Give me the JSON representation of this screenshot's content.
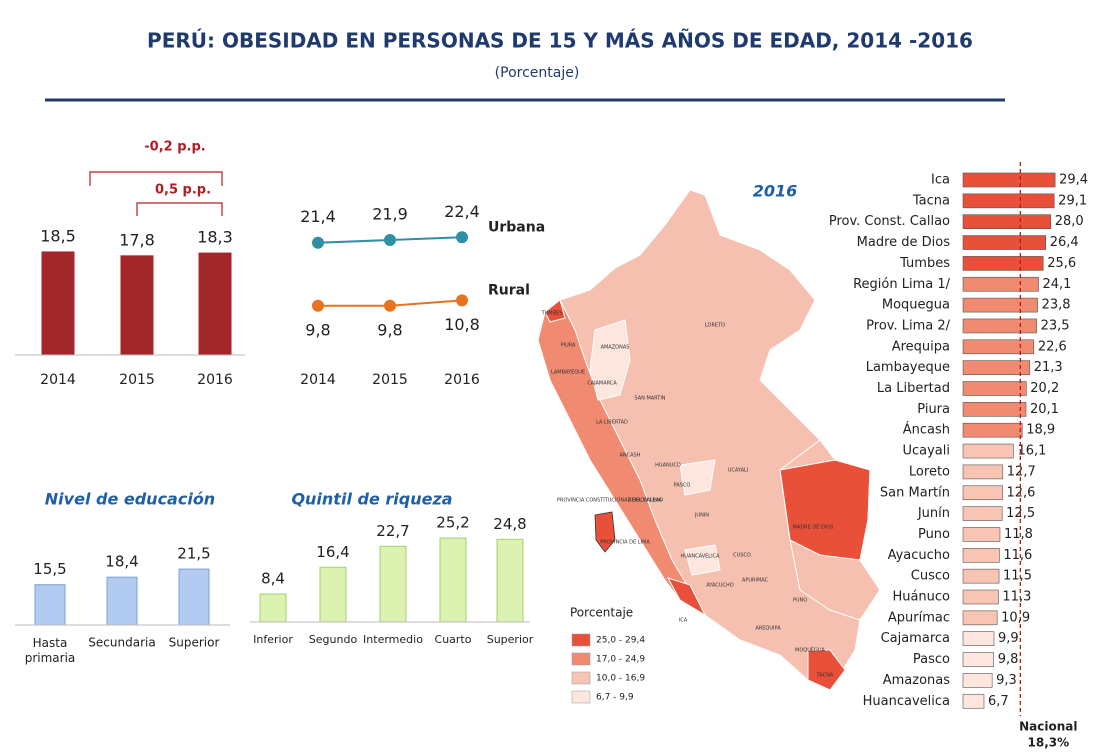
{
  "title": "PERÚ: OBESIDAD EN PERSONAS DE 15 Y MÁS AÑOS DE EDAD, 2014 -2016",
  "subtitle": "(Porcentaje)",
  "chart_data": [
    {
      "type": "bar",
      "categories": [
        "2014",
        "2015",
        "2016"
      ],
      "values": [
        18.5,
        17.8,
        18.3
      ],
      "value_labels": [
        "18,5",
        "17,8",
        "18,3"
      ],
      "color": "#a3262a",
      "edgecolor": "#a3262a",
      "ylim": [
        0,
        20
      ],
      "annotations": [
        "-0,2 p.p.",
        "0,5 p.p."
      ]
    },
    {
      "type": "line",
      "categories": [
        "2014",
        "2015",
        "2016"
      ],
      "ylim": [
        0,
        30
      ],
      "series": [
        {
          "name": "Urbana",
          "color": "#2f8fa6",
          "values": [
            21.4,
            21.9,
            22.4
          ],
          "value_labels": [
            "21,4",
            "21,9",
            "22,4"
          ]
        },
        {
          "name": "Rural",
          "color": "#e8731e",
          "values": [
            9.8,
            9.8,
            10.8
          ],
          "value_labels": [
            "9,8",
            "9,8",
            "10,8"
          ]
        }
      ]
    },
    {
      "type": "bar",
      "title": "Nivel de educación",
      "categories": [
        "Hasta primaria",
        "Secundaria",
        "Superior"
      ],
      "values": [
        15.5,
        18.4,
        21.5
      ],
      "value_labels": [
        "15,5",
        "18,4",
        "21,5"
      ],
      "color": "#b3cbf0",
      "edgecolor": "#7d9fd6",
      "ylim": [
        0,
        30
      ]
    },
    {
      "type": "bar",
      "title": "Quintil de riqueza",
      "categories": [
        "Inferior",
        "Segundo",
        "Intermedio",
        "Cuarto",
        "Superior"
      ],
      "values": [
        8.4,
        16.4,
        22.7,
        25.2,
        24.8
      ],
      "value_labels": [
        "8,4",
        "16,4",
        "22,7",
        "25,2",
        "24,8"
      ],
      "color": "#dcf2b0",
      "edgecolor": "#a8cf72",
      "ylim": [
        0,
        30
      ]
    },
    {
      "type": "hbar",
      "title": "2016",
      "categories": [
        "Ica",
        "Tacna",
        "Prov. Const. Callao",
        "Madre de Dios",
        "Tumbes",
        "Región Lima  1/",
        "Moquegua",
        "Prov. Lima 2/",
        "Arequipa",
        "Lambayeque",
        "La Libertad",
        "Piura",
        "Áncash",
        "Ucayali",
        "Loreto",
        "San Martín",
        "Junín",
        "Puno",
        "Ayacucho",
        "Cusco",
        "Huánuco",
        "Apurímac",
        "Cajamarca",
        "Pasco",
        "Amazonas",
        "Huancavelica"
      ],
      "values": [
        29.4,
        29.1,
        28.0,
        26.4,
        25.6,
        24.1,
        23.8,
        23.5,
        22.6,
        21.3,
        20.2,
        20.1,
        18.9,
        16.1,
        12.7,
        12.6,
        12.5,
        11.8,
        11.6,
        11.5,
        11.3,
        10.9,
        9.9,
        9.8,
        9.3,
        6.7
      ],
      "value_labels": [
        "29,4",
        "29,1",
        "28,0",
        "26,4",
        "25,6",
        "24,1",
        "23,8",
        "23,5",
        "22,6",
        "21,3",
        "20,2",
        "20,1",
        "18,9",
        "16,1",
        "12,7",
        "12,6",
        "12,5",
        "11,8",
        "11,6",
        "11,5",
        "11,3",
        "10,9",
        "9,9",
        "9,8",
        "9,3",
        "6,7"
      ],
      "colors": [
        "#e8503a",
        "#e8503a",
        "#e8503a",
        "#e8503a",
        "#e8503a",
        "#f08a70",
        "#f08a70",
        "#f08a70",
        "#f08a70",
        "#f08a70",
        "#f08a70",
        "#f08a70",
        "#f08a70",
        "#f8c4b4",
        "#f8c4b4",
        "#f8c4b4",
        "#f8c4b4",
        "#f8c4b4",
        "#f8c4b4",
        "#f8c4b4",
        "#f8c4b4",
        "#f8c4b4",
        "#fce6de",
        "#fce6de",
        "#fce6de",
        "#fce6de"
      ],
      "xlim": [
        0,
        30
      ],
      "reference": {
        "label": "Nacional",
        "value": 18.3,
        "value_label": "18,3%",
        "color": "#c0141a"
      }
    }
  ],
  "map": {
    "labels": [
      "TUMBES",
      "PIURA",
      "AMAZONAS",
      "LORETO",
      "LAMBAYEQUE",
      "CAJAMARCA",
      "SAN MARTIN",
      "LA LIBERTAD",
      "ANCASH",
      "HUANUCO",
      "UCAYALI",
      "PASCO",
      "REGION LIMA",
      "PROVINCIA CONSTITUCIONAL DEL CALLAO",
      "PROVINCIA DE LIMA",
      "JUNIN",
      "MADRE DE DIOS",
      "HUANCAVELICA",
      "CUSCO",
      "AYACUCHO",
      "APURIMAC",
      "ICA",
      "PUNO",
      "AREQUIPA",
      "MOQUEGUA",
      "TACNA"
    ],
    "legend": {
      "title": "Porcentaje",
      "items": [
        {
          "label": "25,0 - 29,4",
          "color": "#e8503a"
        },
        {
          "label": "17,0 - 24,9",
          "color": "#f08a70"
        },
        {
          "label": "10,0 - 16,9",
          "color": "#f8c4b4"
        },
        {
          "label": "6,7 - 9,9",
          "color": "#fce6de"
        }
      ]
    }
  }
}
